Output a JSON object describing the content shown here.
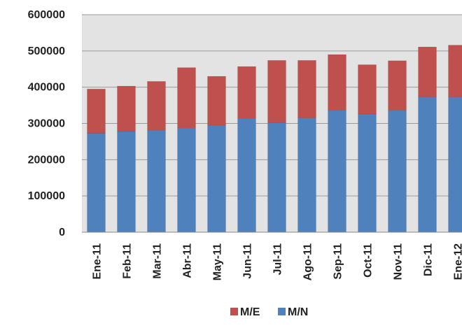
{
  "chart_data": {
    "type": "bar",
    "stacked": true,
    "categories": [
      "Ene-11",
      "Feb-11",
      "Mar-11",
      "Abr-11",
      "May-11",
      "Jun-11",
      "Jul-11",
      "Ago-11",
      "Sep-11",
      "Oct-11",
      "Nov-11",
      "Dic-11",
      "Ene-12"
    ],
    "series": [
      {
        "name": "M/N",
        "color": "#4F81BD",
        "values": [
          273000,
          278000,
          281000,
          287000,
          295000,
          314000,
          302000,
          315000,
          336000,
          326000,
          336000,
          373000,
          373000
        ]
      },
      {
        "name": "M/E",
        "color": "#C0504D",
        "values": [
          122000,
          125000,
          135000,
          167000,
          135000,
          143000,
          172000,
          159000,
          154000,
          136000,
          137000,
          138000,
          143000
        ]
      }
    ],
    "ylim": [
      0,
      600000
    ],
    "yticks": [
      "0",
      "100000",
      "200000",
      "300000",
      "400000",
      "500000",
      "600000"
    ],
    "legend": {
      "placement": "bottom",
      "order": [
        "M/E",
        "M/N"
      ]
    },
    "grid": true,
    "plot_background": "#E3E3E3",
    "title": "",
    "xlabel": "",
    "ylabel": ""
  }
}
